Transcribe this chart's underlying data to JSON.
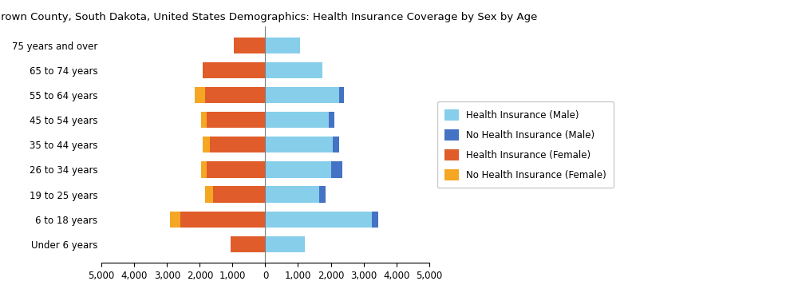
{
  "title": "Brown County, South Dakota, United States Demographics: Health Insurance Coverage by Sex by Age",
  "age_groups": [
    "Under 6 years",
    "6 to 18 years",
    "19 to 25 years",
    "26 to 34 years",
    "35 to 44 years",
    "45 to 54 years",
    "55 to 64 years",
    "65 to 74 years",
    "75 years and over"
  ],
  "male_insured": [
    1200,
    3250,
    1650,
    2000,
    2050,
    1950,
    2250,
    1750,
    1050
  ],
  "male_uninsured": [
    0,
    200,
    200,
    350,
    200,
    150,
    150,
    0,
    0
  ],
  "female_insured": [
    1050,
    2600,
    1600,
    1800,
    1700,
    1800,
    1850,
    1900,
    950
  ],
  "female_uninsured": [
    0,
    300,
    250,
    150,
    200,
    150,
    300,
    0,
    0
  ],
  "color_male_insured": "#87CEEB",
  "color_male_uninsured": "#4472C4",
  "color_female_insured": "#E05C2A",
  "color_female_uninsured": "#F5A623",
  "xlim": 5000,
  "legend_labels": [
    "Health Insurance (Male)",
    "No Health Insurance (Male)",
    "Health Insurance (Female)",
    "No Health Insurance (Female)"
  ]
}
